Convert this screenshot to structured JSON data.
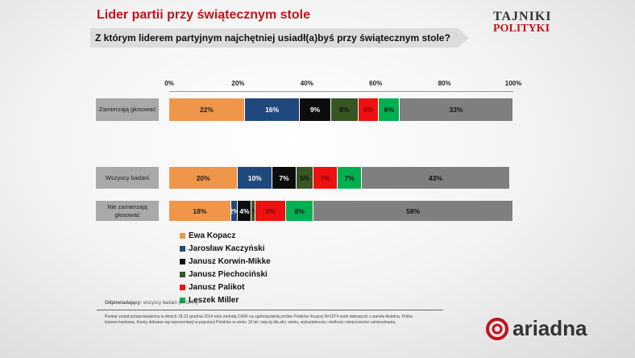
{
  "header": {
    "title": "Lider partii przy świątecznym stole",
    "question": "Z którym liderem partyjnym najchętniej usiadł(a)byś przy świątecznym stole?",
    "logo_line1": "TAJNIKI",
    "logo_line2": "POLITYKI"
  },
  "chart_data": {
    "type": "bar",
    "orientation": "horizontal",
    "stacked": true,
    "xlim": [
      0,
      100
    ],
    "tick_labels": [
      "0%",
      "20%",
      "40%",
      "60%",
      "80%",
      "100%"
    ],
    "categories": [
      "Zamierzają głosować",
      "Wszyscy badani",
      "Nie zamierzają głosować"
    ],
    "series": [
      {
        "name": "Ewa Kopacz",
        "color": "#f0964a",
        "text": "#222",
        "values": [
          22,
          20,
          18
        ]
      },
      {
        "name": "Jarosław Kaczyński",
        "color": "#1f497d",
        "text": "#fff",
        "values": [
          16,
          10,
          2
        ]
      },
      {
        "name": "Janusz Korwin-Mikke",
        "color": "#0d0d0d",
        "text": "#fff",
        "values": [
          9,
          7,
          4
        ]
      },
      {
        "name": "Janusz Piechociński",
        "color": "#375623",
        "text": "#111",
        "values": [
          8,
          5,
          1
        ]
      },
      {
        "name": "Janusz Palikot",
        "color": "#ee1111",
        "text": "#7a0000",
        "values": [
          6,
          7,
          9
        ]
      },
      {
        "name": "Leszek Miller",
        "color": "#00b050",
        "text": "#111",
        "values": [
          6,
          7,
          8
        ]
      },
      {
        "name": "",
        "color": "#7f7f7f",
        "text": "#111",
        "values": [
          33,
          43,
          58
        ]
      }
    ],
    "legend_placement": "bottom-left"
  },
  "footer": {
    "respondents_label": "Odpowiadający:",
    "respondents": "wszyscy badani (n=1074).",
    "note": "Pomiar został przeprowadzony w dniach 18-21 grudnia 2014 roku metodą CAWI na ogólnopolskiej próbie Polaków liczącej N=1074 osób dobranych z panelu Ariadna. Próba losowo-kwotowa. Kwoty dobrane wg reprezentacji w populacji Polaków w wieku 18 lat i więcej dla płci, wieku, wykształcenia i wielkości miejscowości zamieszkania.",
    "brand": "ariadna"
  }
}
